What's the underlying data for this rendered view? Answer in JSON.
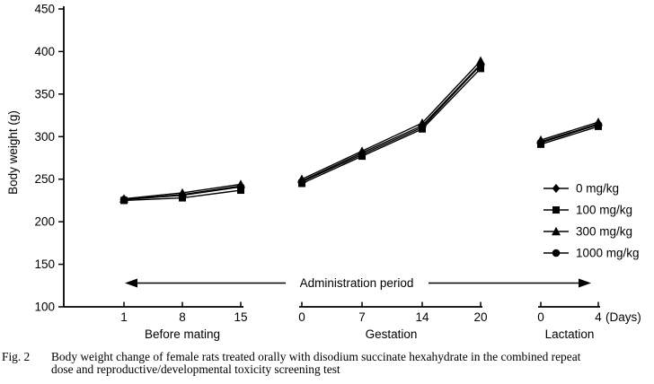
{
  "figure": {
    "caption_label": "Fig. 2",
    "caption_line1": "Body weight change of female rats treated orally with disodium succinate hexahydrate in the combined repeat",
    "caption_line2": "dose and reproductive/developmental toxicity screening test"
  },
  "chart_data": {
    "type": "line",
    "title": "",
    "ylabel": "Body weight (g)",
    "x_unit": "(Days)",
    "ylim": [
      100,
      450
    ],
    "yticks": [
      100,
      150,
      200,
      250,
      300,
      350,
      400,
      450
    ],
    "grid": false,
    "legend_position": "right-lower",
    "annotation": "Administration period",
    "marker_color": "#000000",
    "legend": [
      {
        "name": "0 mg/kg",
        "marker": "diamond"
      },
      {
        "name": "100 mg/kg",
        "marker": "square"
      },
      {
        "name": "300 mg/kg",
        "marker": "triangle"
      },
      {
        "name": "1000 mg/kg",
        "marker": "circle"
      }
    ],
    "segments": [
      {
        "label": "Before mating",
        "days": [
          1,
          8,
          15
        ],
        "series": [
          {
            "name": "0 mg/kg",
            "marker": "diamond",
            "values": [
              226,
              232,
              242
            ]
          },
          {
            "name": "100 mg/kg",
            "marker": "square",
            "values": [
              225,
              228,
              237
            ]
          },
          {
            "name": "300 mg/kg",
            "marker": "triangle",
            "values": [
              227,
              234,
              244
            ]
          },
          {
            "name": "1000 mg/kg",
            "marker": "circle",
            "values": [
              226,
              231,
              241
            ]
          }
        ]
      },
      {
        "label": "Gestation",
        "days": [
          0,
          7,
          14,
          20
        ],
        "series": [
          {
            "name": "0 mg/kg",
            "marker": "diamond",
            "values": [
              248,
              281,
              313,
              385
            ]
          },
          {
            "name": "100 mg/kg",
            "marker": "square",
            "values": [
              245,
              277,
              309,
              380
            ]
          },
          {
            "name": "300 mg/kg",
            "marker": "triangle",
            "values": [
              250,
              283,
              316,
              389
            ]
          },
          {
            "name": "1000 mg/kg",
            "marker": "circle",
            "values": [
              247,
              279,
              311,
              384
            ]
          }
        ]
      },
      {
        "label": "Lactation",
        "days": [
          0,
          4
        ],
        "series": [
          {
            "name": "0 mg/kg",
            "marker": "diamond",
            "values": [
              294,
              315
            ]
          },
          {
            "name": "100 mg/kg",
            "marker": "square",
            "values": [
              291,
              312
            ]
          },
          {
            "name": "300 mg/kg",
            "marker": "triangle",
            "values": [
              296,
              317
            ]
          },
          {
            "name": "1000 mg/kg",
            "marker": "circle",
            "values": [
              293,
              314
            ]
          }
        ]
      }
    ]
  }
}
